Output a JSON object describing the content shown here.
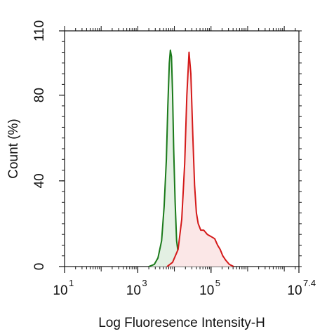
{
  "chart_data": {
    "type": "area",
    "title": "",
    "xlabel": "Log Fluoresence Intensity-H",
    "ylabel": "Count  (%)",
    "x_scale": "log10",
    "xlim": [
      1,
      7.4
    ],
    "ylim": [
      0,
      110
    ],
    "x_ticks": [
      {
        "base": "10",
        "exp": "1",
        "value": 1
      },
      {
        "base": "10",
        "exp": "3",
        "value": 3
      },
      {
        "base": "10",
        "exp": "5",
        "value": 5
      },
      {
        "base": "10",
        "exp": "7.4",
        "value": 7.4
      }
    ],
    "y_ticks": [
      {
        "label": "0",
        "value": 0
      },
      {
        "label": "40",
        "value": 40
      },
      {
        "label": "80",
        "value": 80
      },
      {
        "label": "110",
        "value": 110
      }
    ],
    "grid": false,
    "legend": "none",
    "series": [
      {
        "color": "#1a7a1a",
        "fill": "#e3f0e3",
        "x": [
          3.3,
          3.45,
          3.55,
          3.65,
          3.72,
          3.78,
          3.82,
          3.86,
          3.89,
          3.92,
          3.95,
          3.98,
          4.02,
          4.06,
          4.12,
          4.2,
          4.32
        ],
        "y": [
          0,
          1,
          4,
          12,
          28,
          50,
          75,
          95,
          101,
          98,
          80,
          55,
          30,
          12,
          4,
          1,
          0
        ]
      },
      {
        "color": "#d41a1a",
        "fill": "#fbe7e7",
        "x": [
          3.8,
          3.95,
          4.1,
          4.2,
          4.28,
          4.34,
          4.4,
          4.45,
          4.5,
          4.55,
          4.6,
          4.65,
          4.72,
          4.8,
          4.9,
          5.0,
          5.1,
          5.18,
          5.25,
          5.32,
          5.4,
          5.5,
          5.62
        ],
        "y": [
          0,
          2,
          8,
          22,
          48,
          80,
          100,
          90,
          62,
          38,
          25,
          20,
          17,
          17,
          15,
          14,
          13,
          10,
          8,
          5,
          3,
          1,
          0
        ]
      }
    ]
  }
}
